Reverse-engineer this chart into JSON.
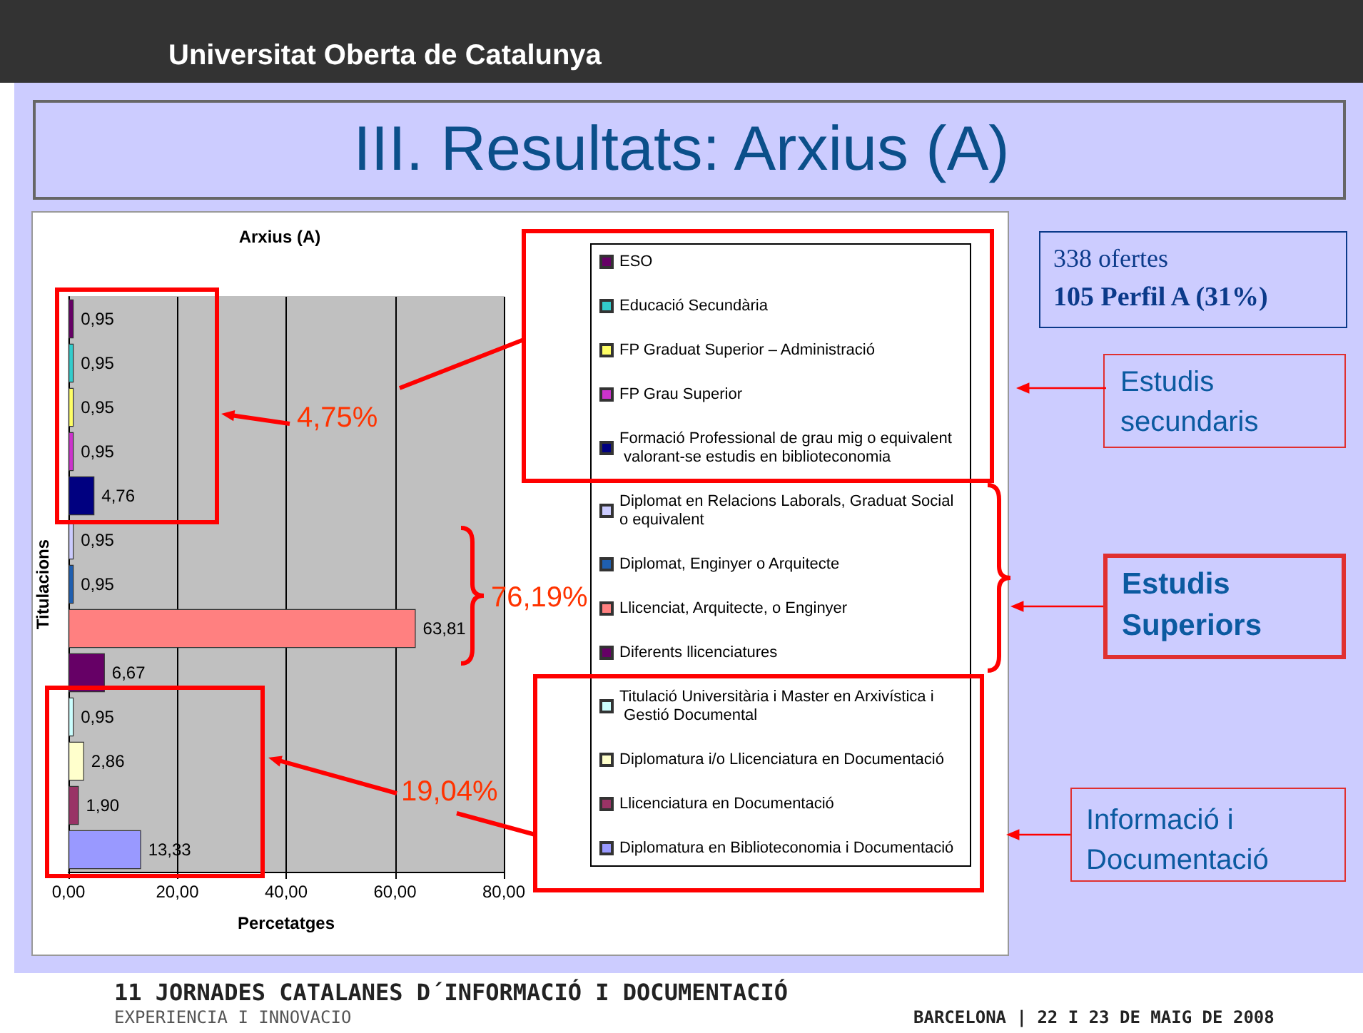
{
  "chart_data": {
    "type": "bar",
    "orientation": "horizontal",
    "title": "Arxius (A)",
    "xlabel": "Percetatges",
    "ylabel": "Titulacions",
    "categories": [
      null,
      null,
      null,
      null,
      null,
      null,
      null,
      null,
      null,
      null,
      null,
      null,
      null
    ],
    "series": [
      {
        "name": "ESO",
        "color": "#660066",
        "values": [
          0.95,
          null,
          null,
          null,
          null,
          null,
          null,
          null,
          null,
          null,
          null,
          null,
          null
        ],
        "value_labels": [
          "0,95",
          null,
          null,
          null,
          null,
          null,
          null,
          null,
          null,
          null,
          null,
          null,
          null
        ]
      },
      {
        "name": "Educació Secundària",
        "color": "#33cccc",
        "values": [
          null,
          0.95,
          null,
          null,
          null,
          null,
          null,
          null,
          null,
          null,
          null,
          null,
          null
        ],
        "value_labels": [
          null,
          "0,95",
          null,
          null,
          null,
          null,
          null,
          null,
          null,
          null,
          null,
          null,
          null
        ]
      },
      {
        "name": "FP Graduat Superior – Administració",
        "color": "#ffff66",
        "values": [
          null,
          null,
          0.95,
          null,
          null,
          null,
          null,
          null,
          null,
          null,
          null,
          null,
          null
        ],
        "value_labels": [
          null,
          null,
          "0,95",
          null,
          null,
          null,
          null,
          null,
          null,
          null,
          null,
          null,
          null
        ]
      },
      {
        "name": "FP Grau Superior",
        "color": "#cc33cc",
        "values": [
          null,
          null,
          null,
          0.95,
          null,
          null,
          null,
          null,
          null,
          null,
          null,
          null,
          null
        ],
        "value_labels": [
          null,
          null,
          null,
          "0,95",
          null,
          null,
          null,
          null,
          null,
          null,
          null,
          null,
          null
        ]
      },
      {
        "name": "Formació Professional de grau mig o equivalent valorant-se estudis en biblioteconomia",
        "color": "#000080",
        "values": [
          null,
          null,
          null,
          null,
          4.76,
          null,
          null,
          null,
          null,
          null,
          null,
          null,
          null
        ],
        "value_labels": [
          null,
          null,
          null,
          null,
          "4,76",
          null,
          null,
          null,
          null,
          null,
          null,
          null,
          null
        ]
      },
      {
        "name": "Diplomat en Relacions Laborals, Graduat Social o equivalent",
        "color": "#ccccff",
        "values": [
          null,
          null,
          null,
          null,
          null,
          0.95,
          null,
          null,
          null,
          null,
          null,
          null,
          null
        ],
        "value_labels": [
          null,
          null,
          null,
          null,
          null,
          "0,95",
          null,
          null,
          null,
          null,
          null,
          null,
          null
        ]
      },
      {
        "name": "Diplomat, Enginyer o Arquitecte",
        "color": "#1f5fb0",
        "values": [
          null,
          null,
          null,
          null,
          null,
          null,
          0.95,
          null,
          null,
          null,
          null,
          null,
          null
        ],
        "value_labels": [
          null,
          null,
          null,
          null,
          null,
          null,
          "0,95",
          null,
          null,
          null,
          null,
          null,
          null
        ]
      },
      {
        "name": "Llicenciat, Arquitecte, o Enginyer",
        "color": "#ff8080",
        "values": [
          null,
          null,
          null,
          null,
          null,
          null,
          null,
          63.81,
          null,
          null,
          null,
          null,
          null
        ],
        "value_labels": [
          null,
          null,
          null,
          null,
          null,
          null,
          null,
          "63,81",
          null,
          null,
          null,
          null,
          null
        ]
      },
      {
        "name": "Diferents llicenciatures",
        "color": "#660066",
        "values": [
          null,
          null,
          null,
          null,
          null,
          null,
          null,
          null,
          6.67,
          null,
          null,
          null,
          null
        ],
        "value_labels": [
          null,
          null,
          null,
          null,
          null,
          null,
          null,
          null,
          "6,67",
          null,
          null,
          null,
          null
        ]
      },
      {
        "name": "Titulació Universitària i Master en Arxivística i Gestió Documental",
        "color": "#ccffff",
        "values": [
          null,
          null,
          null,
          null,
          null,
          null,
          null,
          null,
          null,
          0.95,
          null,
          null,
          null
        ],
        "value_labels": [
          null,
          null,
          null,
          null,
          null,
          null,
          null,
          null,
          null,
          "0,95",
          null,
          null,
          null
        ]
      },
      {
        "name": "Diplomatura i/o Llicenciatura en Documentació",
        "color": "#ffffcc",
        "values": [
          null,
          null,
          null,
          null,
          null,
          null,
          null,
          null,
          null,
          null,
          2.86,
          null,
          null
        ],
        "value_labels": [
          null,
          null,
          null,
          null,
          null,
          null,
          null,
          null,
          null,
          null,
          "2,86",
          null,
          null
        ]
      },
      {
        "name": "Llicenciatura en Documentació",
        "color": "#993366",
        "values": [
          null,
          null,
          null,
          null,
          null,
          null,
          null,
          null,
          null,
          null,
          null,
          1.9,
          null
        ],
        "value_labels": [
          null,
          null,
          null,
          null,
          null,
          null,
          null,
          null,
          null,
          null,
          null,
          "1,90",
          null
        ]
      },
      {
        "name": "Diplomatura en Biblioteconomia i Documentació",
        "color": "#9999ff",
        "values": [
          null,
          null,
          null,
          null,
          null,
          null,
          null,
          null,
          null,
          null,
          null,
          null,
          13.33
        ],
        "value_labels": [
          null,
          null,
          null,
          null,
          null,
          null,
          null,
          null,
          null,
          null,
          null,
          null,
          "13,33"
        ]
      }
    ],
    "xlim": [
      0,
      80
    ],
    "xticks": [
      {
        "value": 0,
        "label": "0,00"
      },
      {
        "value": 20,
        "label": "20,00"
      },
      {
        "value": 40,
        "label": "40,00"
      },
      {
        "value": 60,
        "label": "60,00"
      },
      {
        "value": 80,
        "label": "80,00"
      }
    ],
    "grid": "x",
    "legend": "right",
    "annotations": [
      "III. Resultats: Arxius (A)",
      "4,75%",
      "76,19%",
      "19,04%",
      "338 ofertes",
      "105 Perfil A (31%)",
      "Estudis secundaris",
      "Estudis Superiors",
      "Informació i Documentació",
      "Universitat Oberta de Catalunya",
      "11 JORNADES CATALANES D´INFORMACIÓ I DOCUMENTACIÓ",
      "EXPERIENCIA I INNOVACIO",
      "BARCELONA | 22 I 23 DE MAIG DE 2008"
    ]
  }
}
